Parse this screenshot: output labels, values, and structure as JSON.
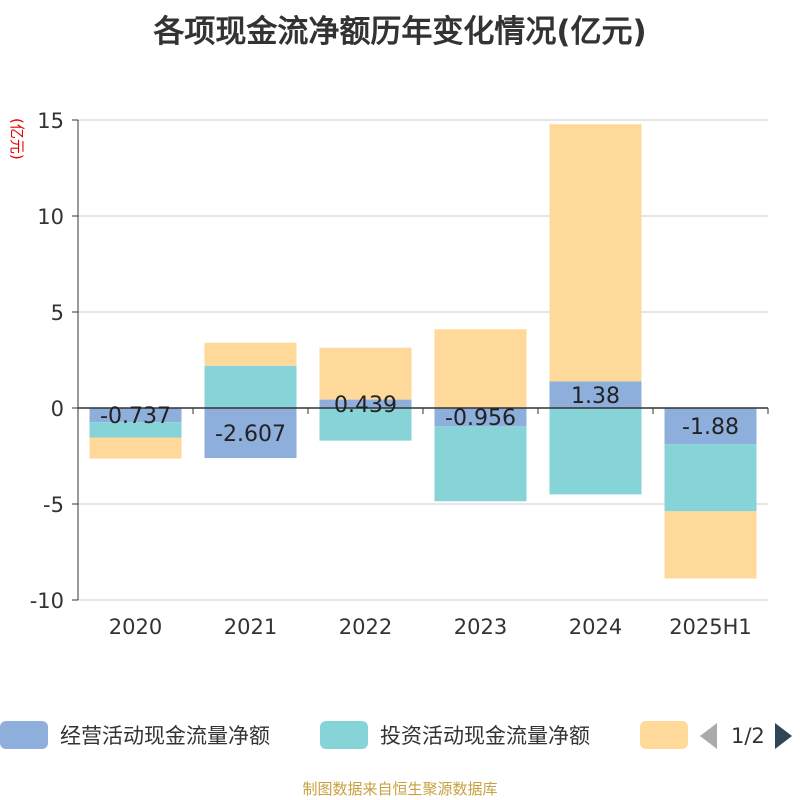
{
  "chart_data": {
    "type": "bar",
    "stacked": true,
    "title": "各项现金流净额历年变化情况(亿元)",
    "ylabel": "(亿元)",
    "categories": [
      "2020",
      "2021",
      "2022",
      "2023",
      "2024",
      "2025H1"
    ],
    "ylim": [
      -10,
      15
    ],
    "yticks": [
      -10,
      -5,
      0,
      5,
      10,
      15
    ],
    "grid": true,
    "legend_position": "bottom",
    "series": [
      {
        "name": "经营活动现金流量净额",
        "color": "#8eaedb",
        "values": [
          -0.737,
          -2.607,
          0.439,
          -0.956,
          1.38,
          -1.88
        ],
        "labels": [
          "-0.737",
          "-2.607",
          "0.439",
          "-0.956",
          "1.38",
          "-1.88"
        ]
      },
      {
        "name": "投资活动现金流量净额",
        "color": "#86d4d8",
        "values": [
          -0.8,
          2.2,
          -1.7,
          -3.9,
          -4.5,
          -3.5
        ]
      },
      {
        "name": "",
        "color": "#ffd99a",
        "values": [
          -1.1,
          1.2,
          2.7,
          4.1,
          13.4,
          -3.5
        ]
      }
    ]
  },
  "legend": {
    "page": "1/2"
  },
  "footer": {
    "source": "制图数据来自恒生聚源数据库"
  }
}
